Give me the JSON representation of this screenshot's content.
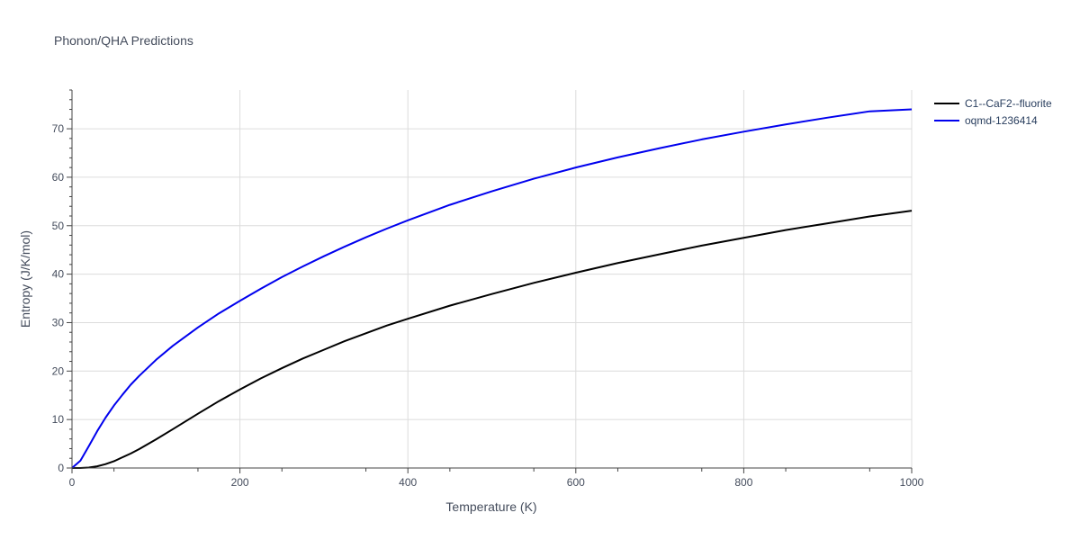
{
  "chart_data": {
    "type": "line",
    "title": "Phonon/QHA Predictions",
    "xlabel": "Temperature (K)",
    "ylabel": "Entropy (J/K/mol)",
    "xlim": [
      0,
      1000
    ],
    "ylim": [
      0,
      78
    ],
    "xticks": [
      0,
      200,
      400,
      600,
      800,
      1000
    ],
    "yticks": [
      0,
      10,
      20,
      30,
      40,
      50,
      60,
      70
    ],
    "grid": true,
    "legend_position": "top-right",
    "series": [
      {
        "name": "C1--CaF2--fluorite",
        "color": "#000000",
        "x": [
          0,
          10,
          20,
          30,
          40,
          50,
          60,
          70,
          80,
          100,
          120,
          150,
          175,
          200,
          225,
          250,
          275,
          300,
          325,
          350,
          375,
          400,
          450,
          500,
          550,
          600,
          650,
          700,
          750,
          800,
          850,
          900,
          950,
          1000
        ],
        "y": [
          0,
          0.01,
          0.1,
          0.35,
          0.8,
          1.4,
          2.2,
          3.0,
          3.9,
          5.9,
          8.0,
          11.2,
          13.8,
          16.2,
          18.5,
          20.6,
          22.6,
          24.4,
          26.2,
          27.8,
          29.4,
          30.8,
          33.5,
          35.9,
          38.2,
          40.3,
          42.3,
          44.1,
          45.9,
          47.5,
          49.1,
          50.5,
          51.9,
          53.1
        ]
      },
      {
        "name": "oqmd-1236414",
        "color": "#0000ee",
        "x": [
          0,
          10,
          20,
          30,
          40,
          50,
          60,
          70,
          80,
          100,
          120,
          150,
          175,
          200,
          225,
          250,
          275,
          300,
          325,
          350,
          375,
          400,
          450,
          500,
          550,
          600,
          650,
          700,
          750,
          800,
          850,
          900,
          950,
          1000
        ],
        "y": [
          0,
          1.5,
          4.5,
          7.6,
          10.4,
          12.9,
          15.1,
          17.2,
          19.0,
          22.3,
          25.2,
          29.0,
          31.9,
          34.5,
          37.0,
          39.4,
          41.6,
          43.7,
          45.7,
          47.6,
          49.4,
          51.1,
          54.3,
          57.1,
          59.7,
          62.0,
          64.1,
          66.0,
          67.8,
          69.4,
          70.9,
          72.3,
          73.6,
          74.0
        ]
      }
    ]
  }
}
